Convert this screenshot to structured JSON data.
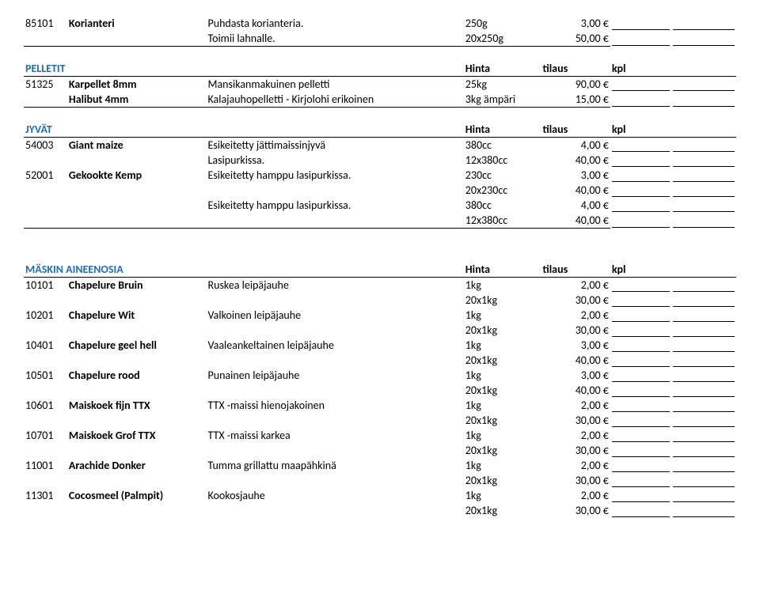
{
  "top": {
    "rows": [
      {
        "code": "85101",
        "name": "Korianteri",
        "desc": "Puhdasta korianteria.",
        "size": "250g",
        "price": "3,00 €"
      },
      {
        "code": "",
        "name": "",
        "desc": "Toimii lahnalle.",
        "size": "20x250g",
        "price": "50,00 €"
      }
    ]
  },
  "pelletit": {
    "title": "PELLETIT",
    "h1": "Hinta",
    "h2": "tilaus",
    "h3": "kpl",
    "rows": [
      {
        "code": "51325",
        "name": "Karpellet 8mm",
        "desc": "Mansikanmakuinen pelletti",
        "size": "25kg",
        "price": "90,00 €"
      },
      {
        "code": "",
        "name": "Halibut 4mm",
        "desc": "Kalajauhopelletti - Kirjolohi erikoinen",
        "size": "3kg ämpäri",
        "price": "15,00 €"
      }
    ]
  },
  "jyvat": {
    "title": "JYVÄT",
    "h1": "Hinta",
    "h2": "tilaus",
    "h3": "kpl",
    "rows": [
      {
        "code": "54003",
        "name": "Giant maize",
        "desc": "Esikeitetty jättimaissinjyvä",
        "size": "380cc",
        "price": "4,00 €"
      },
      {
        "code": "",
        "name": "",
        "desc": "Lasipurkissa.",
        "size": "12x380cc",
        "price": "40,00 €"
      },
      {
        "code": "52001",
        "name": "Gekookte Kemp",
        "desc": "Esikeitetty hamppu lasipurkissa.",
        "size": "230cc",
        "price": "3,00 €"
      },
      {
        "code": "",
        "name": "",
        "desc": "",
        "size": "20x230cc",
        "price": "40,00 €"
      },
      {
        "code": "",
        "name": "",
        "desc": "Esikeitetty hamppu lasipurkissa.",
        "size": "380cc",
        "price": "4,00 €"
      },
      {
        "code": "",
        "name": "",
        "desc": "",
        "size": "12x380cc",
        "price": "40,00 €"
      }
    ]
  },
  "maskin": {
    "title": "MÄSKIN AINEENOSIA",
    "h1": "Hinta",
    "h2": "tilaus",
    "h3": "kpl",
    "rows": [
      {
        "code": "10101",
        "name": "Chapelure Bruin",
        "desc": "Ruskea leipäjauhe",
        "size": "1kg",
        "price": "2,00 €"
      },
      {
        "code": "",
        "name": "",
        "desc": "",
        "size": "20x1kg",
        "price": "30,00 €"
      },
      {
        "code": "10201",
        "name": "Chapelure Wit",
        "desc": "Valkoinen leipäjauhe",
        "size": "1kg",
        "price": "2,00 €"
      },
      {
        "code": "",
        "name": "",
        "desc": "",
        "size": "20x1kg",
        "price": "30,00 €"
      },
      {
        "code": "10401",
        "name": "Chapelure geel hell",
        "desc": "Vaaleankeltainen leipäjauhe",
        "size": "1kg",
        "price": "3,00 €"
      },
      {
        "code": "",
        "name": "",
        "desc": "",
        "size": "20x1kg",
        "price": "40,00 €"
      },
      {
        "code": "10501",
        "name": "Chapelure rood",
        "desc": "Punainen leipäjauhe",
        "size": "1kg",
        "price": "3,00 €"
      },
      {
        "code": "",
        "name": "",
        "desc": "",
        "size": "20x1kg",
        "price": "40,00 €"
      },
      {
        "code": "10601",
        "name": "Maiskoek fijn TTX",
        "desc": "TTX -maissi hienojakoinen",
        "size": "1kg",
        "price": "2,00 €"
      },
      {
        "code": "",
        "name": "",
        "desc": "",
        "size": "20x1kg",
        "price": "30,00 €"
      },
      {
        "code": "10701",
        "name": "Maiskoek Grof TTX",
        "desc": "TTX -maissi karkea",
        "size": "1kg",
        "price": "2,00 €"
      },
      {
        "code": "",
        "name": "",
        "desc": "",
        "size": "20x1kg",
        "price": "30,00 €"
      },
      {
        "code": "11001",
        "name": "Arachide Donker",
        "desc": "Tumma grillattu maapähkinä",
        "size": "1kg",
        "price": "2,00 €"
      },
      {
        "code": "",
        "name": "",
        "desc": "",
        "size": "20x1kg",
        "price": "30,00 €"
      },
      {
        "code": "11301",
        "name": "Cocosmeel (Palmpit)",
        "desc": "Kookosjauhe",
        "size": "1kg",
        "price": "2,00 €"
      },
      {
        "code": "",
        "name": "",
        "desc": "",
        "size": "20x1kg",
        "price": "30,00 €"
      }
    ]
  }
}
